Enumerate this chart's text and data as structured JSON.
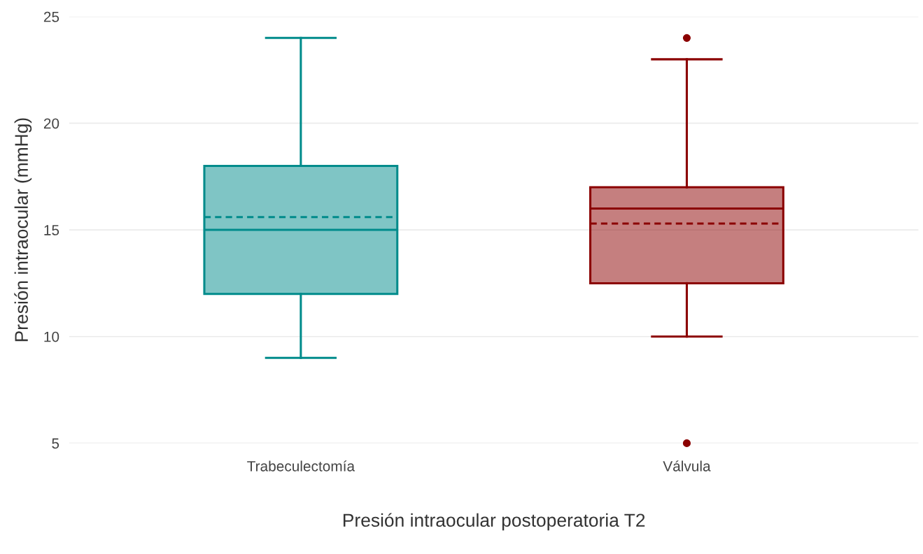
{
  "chart_data": {
    "type": "box",
    "xlabel": "Presión intraocular postoperatoria T2",
    "ylabel": "Presión intraocular (mmHg)",
    "categories": [
      "Trabeculectomía",
      "Válvula"
    ],
    "colors": [
      "#008b8b",
      "#8b0000"
    ],
    "boxes": [
      {
        "low": 9,
        "q1": 12,
        "median": 15,
        "q3": 18,
        "high": 24,
        "mean": 15.6
      },
      {
        "low": 10,
        "q1": 12.5,
        "median": 16,
        "q3": 17,
        "high": 23,
        "mean": 15.3,
        "outliers": [
          24,
          5
        ]
      }
    ],
    "ylim": [
      5,
      25
    ],
    "yticks": [
      5,
      10,
      15,
      20,
      25
    ],
    "grid": "y"
  }
}
